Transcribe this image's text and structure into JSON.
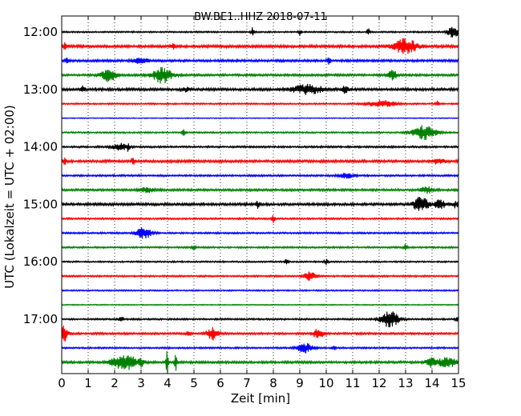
{
  "chart_data": {
    "type": "line",
    "title": "BW.BE1..HHZ 2018-07-11",
    "xlabel": "Zeit  [min]",
    "ylabel": "UTC (Lokalzeit = UTC + 02:00)",
    "xlim": [
      0,
      15
    ],
    "x_ticks": [
      "0",
      "1",
      "2",
      "3",
      "4",
      "5",
      "6",
      "7",
      "8",
      "9",
      "10",
      "11",
      "12",
      "13",
      "14",
      "15"
    ],
    "y_tick_labels": [
      "12:00",
      "13:00",
      "14:00",
      "15:00",
      "16:00",
      "17:00"
    ],
    "grid": "vertical dotted",
    "colors": [
      "#000000",
      "#ff0000",
      "#0000ff",
      "#008000"
    ],
    "series": [
      {
        "time": "12:00",
        "color": "#000000",
        "noise": 0.9,
        "events": [
          {
            "t": 7.2,
            "a": 5,
            "w": 0.04
          },
          {
            "t": 9.0,
            "a": 4,
            "w": 0.04
          },
          {
            "t": 11.6,
            "a": 4,
            "w": 0.04
          },
          {
            "t": 14.8,
            "a": 7,
            "w": 0.15
          }
        ]
      },
      {
        "time": "12:15",
        "color": "#ff0000",
        "noise": 1.6,
        "events": [
          {
            "t": 0.15,
            "a": 5,
            "w": 0.05
          },
          {
            "t": 4.2,
            "a": 3,
            "w": 0.05
          },
          {
            "t": 13.0,
            "a": 10,
            "w": 0.3
          }
        ]
      },
      {
        "time": "12:30",
        "color": "#0000ff",
        "noise": 1.4,
        "events": [
          {
            "t": 0.2,
            "a": 4,
            "w": 0.05
          },
          {
            "t": 3.0,
            "a": 3,
            "w": 0.2
          },
          {
            "t": 10.1,
            "a": 4,
            "w": 0.05
          }
        ]
      },
      {
        "time": "12:45",
        "color": "#008000",
        "noise": 1.3,
        "events": [
          {
            "t": 1.8,
            "a": 8,
            "w": 0.2
          },
          {
            "t": 3.8,
            "a": 10,
            "w": 0.25
          },
          {
            "t": 12.5,
            "a": 6,
            "w": 0.12
          }
        ]
      },
      {
        "time": "13:00",
        "color": "#000000",
        "noise": 1.5,
        "events": [
          {
            "t": 0.8,
            "a": 5,
            "w": 0.05
          },
          {
            "t": 4.7,
            "a": 3,
            "w": 0.1
          },
          {
            "t": 9.3,
            "a": 6,
            "w": 0.4
          },
          {
            "t": 10.7,
            "a": 4,
            "w": 0.1
          }
        ]
      },
      {
        "time": "13:15",
        "color": "#ff0000",
        "noise": 0.9,
        "events": [
          {
            "t": 12.1,
            "a": 4,
            "w": 0.4
          },
          {
            "t": 14.2,
            "a": 3,
            "w": 0.05
          }
        ]
      },
      {
        "time": "13:30",
        "color": "#0000ff",
        "noise": 0.5,
        "events": []
      },
      {
        "time": "13:45",
        "color": "#008000",
        "noise": 0.9,
        "events": [
          {
            "t": 4.6,
            "a": 4,
            "w": 0.05
          },
          {
            "t": 13.7,
            "a": 9,
            "w": 0.3
          }
        ]
      },
      {
        "time": "14:00",
        "color": "#000000",
        "noise": 1.1,
        "events": [
          {
            "t": 2.2,
            "a": 4,
            "w": 0.2
          },
          {
            "t": 2.5,
            "a": 4,
            "w": 0.04
          }
        ]
      },
      {
        "time": "14:15",
        "color": "#ff0000",
        "noise": 1.5,
        "events": [
          {
            "t": 0.1,
            "a": 4,
            "w": 0.05
          },
          {
            "t": 2.7,
            "a": 4,
            "w": 0.05
          },
          {
            "t": 14.2,
            "a": 3,
            "w": 0.2
          }
        ]
      },
      {
        "time": "14:30",
        "color": "#0000ff",
        "noise": 1.1,
        "events": [
          {
            "t": 10.8,
            "a": 3,
            "w": 0.2
          }
        ]
      },
      {
        "time": "14:45",
        "color": "#008000",
        "noise": 1.3,
        "events": [
          {
            "t": 3.2,
            "a": 3,
            "w": 0.2
          },
          {
            "t": 13.8,
            "a": 4,
            "w": 0.15
          }
        ]
      },
      {
        "time": "15:00",
        "color": "#000000",
        "noise": 1.5,
        "events": [
          {
            "t": 7.4,
            "a": 4,
            "w": 0.05
          },
          {
            "t": 13.6,
            "a": 10,
            "w": 0.2
          },
          {
            "t": 14.3,
            "a": 5,
            "w": 0.15
          },
          {
            "t": 14.9,
            "a": 4,
            "w": 0.1
          }
        ]
      },
      {
        "time": "15:15",
        "color": "#ff0000",
        "noise": 1.0,
        "events": [
          {
            "t": 8.0,
            "a": 5,
            "w": 0.04
          }
        ]
      },
      {
        "time": "15:30",
        "color": "#0000ff",
        "noise": 1.0,
        "events": [
          {
            "t": 3.1,
            "a": 7,
            "w": 0.2
          }
        ]
      },
      {
        "time": "15:45",
        "color": "#008000",
        "noise": 1.0,
        "events": [
          {
            "t": 5.0,
            "a": 4,
            "w": 0.05
          },
          {
            "t": 13.0,
            "a": 4,
            "w": 0.05
          }
        ]
      },
      {
        "time": "16:00",
        "color": "#000000",
        "noise": 0.9,
        "events": [
          {
            "t": 8.5,
            "a": 3,
            "w": 0.05
          },
          {
            "t": 10.0,
            "a": 3,
            "w": 0.05
          }
        ]
      },
      {
        "time": "16:15",
        "color": "#ff0000",
        "noise": 1.0,
        "events": [
          {
            "t": 9.4,
            "a": 6,
            "w": 0.15
          }
        ]
      },
      {
        "time": "16:30",
        "color": "#0000ff",
        "noise": 0.8,
        "events": []
      },
      {
        "time": "16:45",
        "color": "#008000",
        "noise": 0.6,
        "events": []
      },
      {
        "time": "17:00",
        "color": "#000000",
        "noise": 1.0,
        "events": [
          {
            "t": 2.25,
            "a": 6,
            "w": 0.04
          },
          {
            "t": 12.4,
            "a": 10,
            "w": 0.25
          },
          {
            "t": 14.95,
            "a": 5,
            "w": 0.04
          }
        ]
      },
      {
        "time": "17:15",
        "color": "#ff0000",
        "noise": 1.2,
        "events": [
          {
            "t": 0.1,
            "a": 10,
            "w": 0.1
          },
          {
            "t": 4.8,
            "a": 4,
            "w": 0.05
          },
          {
            "t": 5.7,
            "a": 8,
            "w": 0.15
          },
          {
            "t": 9.7,
            "a": 6,
            "w": 0.15
          }
        ]
      },
      {
        "time": "17:30",
        "color": "#0000ff",
        "noise": 1.0,
        "events": [
          {
            "t": 9.2,
            "a": 6,
            "w": 0.2
          },
          {
            "t": 10.3,
            "a": 3,
            "w": 0.05
          }
        ]
      },
      {
        "time": "17:45",
        "color": "#008000",
        "noise": 1.4,
        "events": [
          {
            "t": 2.4,
            "a": 9,
            "w": 0.35
          },
          {
            "t": 3.0,
            "a": 4,
            "w": 0.05
          },
          {
            "t": 3.98,
            "a": 25,
            "w": 0.03
          },
          {
            "t": 4.3,
            "a": 18,
            "w": 0.03
          },
          {
            "t": 14.0,
            "a": 6,
            "w": 0.15
          },
          {
            "t": 14.5,
            "a": 7,
            "w": 0.15
          },
          {
            "t": 14.8,
            "a": 5,
            "w": 0.1
          }
        ]
      }
    ]
  }
}
